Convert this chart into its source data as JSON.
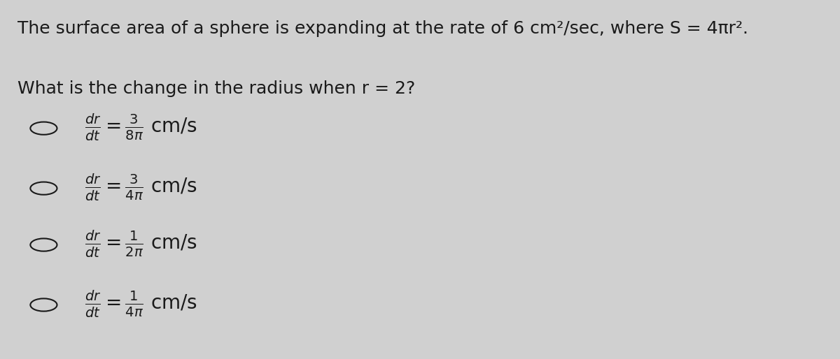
{
  "background_color": "#d0d0d0",
  "title_line1": "The surface area of a sphere is expanding at the rate of 6 cm²/sec, where S = 4πr².",
  "title_line2": "What is the change in the radius when r = 2?",
  "options": [
    {
      "label": "$\\frac{dr}{dt} = \\frac{3}{8\\pi}$ cm/s"
    },
    {
      "label": "$\\frac{dr}{dt} = \\frac{3}{4\\pi}$ cm/s"
    },
    {
      "label": "$\\frac{dr}{dt} = \\frac{1}{2\\pi}$ cm/s"
    },
    {
      "label": "$\\frac{dr}{dt} = \\frac{1}{4\\pi}$ cm/s"
    }
  ],
  "text_color": "#1a1a1a",
  "circle_color": "#1a1a1a",
  "font_size_title": 18,
  "font_size_options": 20,
  "figwidth": 12.0,
  "figheight": 5.14
}
